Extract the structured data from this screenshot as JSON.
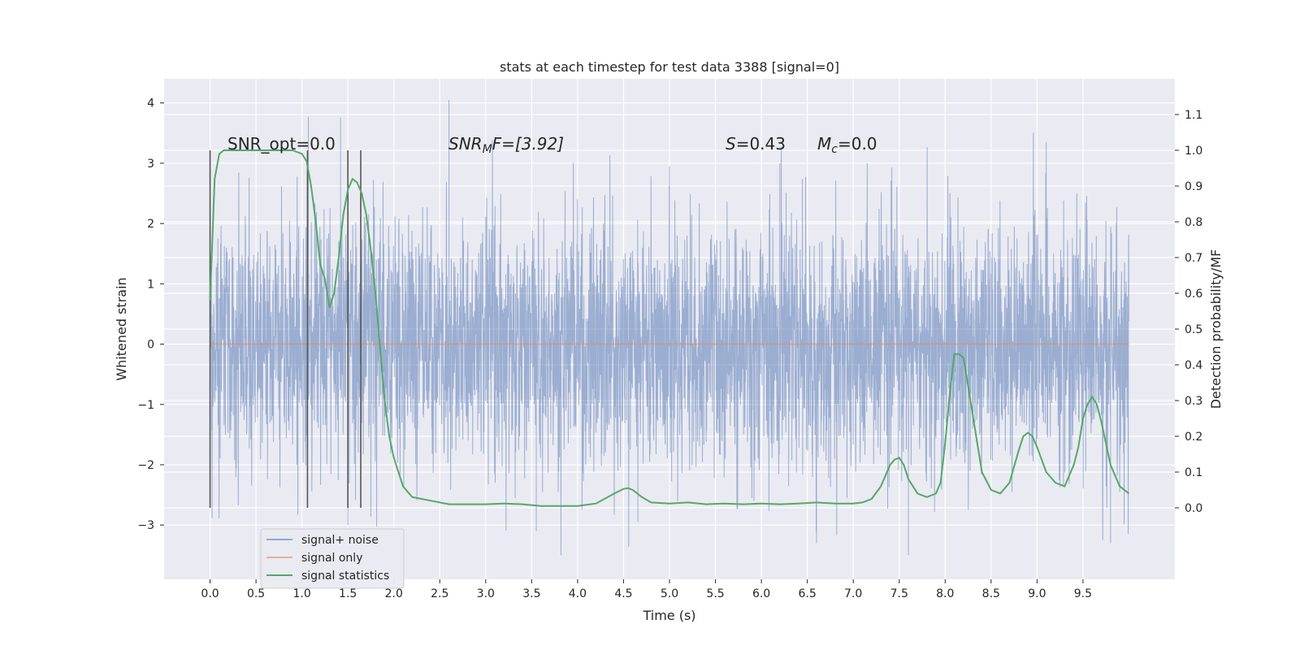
{
  "chart_data": {
    "type": "line",
    "title": "stats at each timestep for test data 3388 [signal=0]",
    "xlabel": "Time (s)",
    "ylabel_left": "Whitened strain",
    "ylabel_right": "Detection probability/MF",
    "xlim": [
      -0.5,
      10.5
    ],
    "ylim_left": [
      -3.9,
      4.4
    ],
    "ylim_right": [
      -0.2,
      1.2
    ],
    "x_ticks": [
      "0.0",
      "0.5",
      "1.0",
      "1.5",
      "2.0",
      "2.5",
      "3.0",
      "3.5",
      "4.0",
      "4.5",
      "5.0",
      "5.5",
      "6.0",
      "6.5",
      "7.0",
      "7.5",
      "8.0",
      "8.5",
      "9.0",
      "9.5"
    ],
    "y_ticks_left": [
      "−3",
      "−2",
      "−1",
      "0",
      "1",
      "2",
      "3",
      "4"
    ],
    "y_ticks_right": [
      "0.0",
      "0.1",
      "0.2",
      "0.3",
      "0.4",
      "0.5",
      "0.6",
      "0.7",
      "0.8",
      "0.9",
      "1.0",
      "1.1"
    ],
    "grid": true,
    "legend_placement": "lower-left",
    "annotations": {
      "snr_opt": "SNR_opt=0.0",
      "snr_mf_prefix": "SNR",
      "snr_mf_sub": "M",
      "snr_mf_suffix": "F=[3.92]",
      "s_prefix": "S",
      "s_suffix": "=0.43",
      "mc_prefix": "M",
      "mc_sub": "c",
      "mc_suffix": "=0.0"
    },
    "vertical_markers_x": [
      0.0,
      1.06,
      1.5,
      1.64
    ],
    "series": [
      {
        "name": "signal+ noise",
        "axis": "left",
        "color": "#4c72b0",
        "x_range": [
          0.0,
          10.0
        ],
        "envelope_upper_typical": 1.5,
        "envelope_lower_typical": -1.5,
        "max": 4.05,
        "min": -3.5,
        "peaks": [
          [
            2.6,
            4.05
          ],
          [
            1.07,
            3.77
          ],
          [
            1.42,
            3.76
          ],
          [
            9.1,
            3.35
          ],
          [
            6.2,
            3.0
          ],
          [
            5.0,
            2.95
          ],
          [
            7.6,
            -3.5
          ],
          [
            6.6,
            -3.3
          ],
          [
            9.8,
            -3.3
          ],
          [
            3.55,
            -3.1
          ],
          [
            1.5,
            -3.0
          ]
        ]
      },
      {
        "name": "signal only",
        "axis": "left",
        "color": "#dd8452",
        "x": [
          0.0,
          10.0
        ],
        "values": [
          0.0,
          0.0
        ]
      },
      {
        "name": "signal statistics",
        "axis": "right",
        "color": "#55a868",
        "x": [
          0.0,
          0.05,
          0.1,
          0.15,
          0.2,
          0.3,
          0.5,
          0.7,
          0.9,
          1.0,
          1.05,
          1.1,
          1.15,
          1.2,
          1.25,
          1.3,
          1.35,
          1.4,
          1.45,
          1.5,
          1.55,
          1.6,
          1.65,
          1.7,
          1.75,
          1.8,
          1.85,
          1.9,
          1.95,
          2.0,
          2.1,
          2.2,
          2.4,
          2.6,
          2.8,
          3.0,
          3.2,
          3.4,
          3.6,
          3.8,
          4.0,
          4.2,
          4.4,
          4.5,
          4.55,
          4.6,
          4.7,
          4.8,
          5.0,
          5.2,
          5.4,
          5.6,
          5.8,
          6.0,
          6.2,
          6.4,
          6.6,
          6.8,
          7.0,
          7.1,
          7.2,
          7.3,
          7.4,
          7.45,
          7.5,
          7.55,
          7.6,
          7.7,
          7.8,
          7.9,
          7.95,
          8.0,
          8.05,
          8.1,
          8.15,
          8.2,
          8.25,
          8.3,
          8.4,
          8.5,
          8.6,
          8.7,
          8.8,
          8.85,
          8.9,
          8.95,
          9.0,
          9.1,
          9.2,
          9.3,
          9.4,
          9.45,
          9.5,
          9.55,
          9.6,
          9.65,
          9.7,
          9.8,
          9.9,
          10.0
        ],
        "values": [
          0.58,
          0.92,
          0.99,
          1.0,
          1.0,
          1.0,
          1.0,
          1.0,
          1.0,
          0.99,
          0.97,
          0.9,
          0.8,
          0.68,
          0.64,
          0.56,
          0.6,
          0.7,
          0.82,
          0.89,
          0.92,
          0.91,
          0.88,
          0.82,
          0.72,
          0.6,
          0.45,
          0.3,
          0.2,
          0.14,
          0.06,
          0.03,
          0.02,
          0.01,
          0.01,
          0.01,
          0.012,
          0.01,
          0.005,
          0.005,
          0.005,
          0.012,
          0.04,
          0.053,
          0.055,
          0.05,
          0.03,
          0.015,
          0.012,
          0.015,
          0.01,
          0.012,
          0.01,
          0.012,
          0.01,
          0.012,
          0.015,
          0.012,
          0.012,
          0.015,
          0.025,
          0.06,
          0.12,
          0.135,
          0.14,
          0.12,
          0.08,
          0.04,
          0.03,
          0.04,
          0.07,
          0.18,
          0.32,
          0.43,
          0.43,
          0.42,
          0.34,
          0.26,
          0.1,
          0.05,
          0.04,
          0.07,
          0.16,
          0.2,
          0.21,
          0.2,
          0.17,
          0.1,
          0.07,
          0.06,
          0.12,
          0.17,
          0.25,
          0.29,
          0.31,
          0.29,
          0.24,
          0.12,
          0.06,
          0.04
        ]
      }
    ]
  }
}
